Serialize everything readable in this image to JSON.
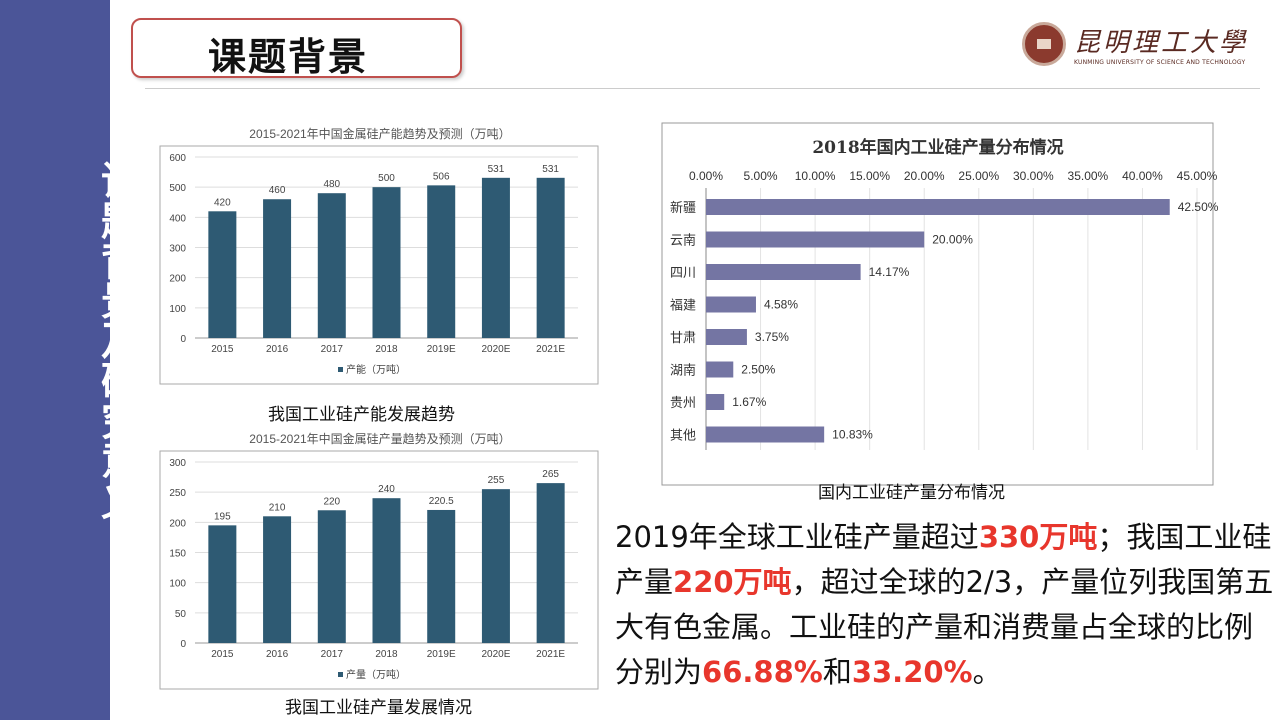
{
  "sidebar": {
    "title": "课题背景及研究意义",
    "color": "#4b5598"
  },
  "header": {
    "title": "课题背景",
    "logo_name": "昆明理工大學",
    "logo_subtitle": "KUNMING UNIVERSITY OF SCIENCE AND TECHNOLOGY"
  },
  "captions": {
    "chart1": "我国工业硅产能发展趋势",
    "chart2": "我国工业硅产量发展情况",
    "chart3": "国内工业硅产量分布情况"
  },
  "paragraph": {
    "p1": "2019年全球工业硅产量超过",
    "h1": "330万吨",
    "p2": "；我国工业硅产量",
    "h2": "220万吨",
    "p3": "，超过全球的2/3，产量位列我国第五大有色金属。工业硅的产量和消费量占全球的比例分别为",
    "h3": "66.88%",
    "p4": "和",
    "h4": "33.20%",
    "p5": "。"
  },
  "chart_data": [
    {
      "type": "bar",
      "title": "2015-2021年中国金属硅产能趋势及预测（万吨）",
      "categories": [
        "2015",
        "2016",
        "2017",
        "2018",
        "2019E",
        "2020E",
        "2021E"
      ],
      "series": [
        {
          "name": "产能（万吨）",
          "values": [
            420,
            460,
            480,
            500,
            506,
            531,
            531
          ]
        }
      ],
      "ylim": [
        0,
        600
      ],
      "yticks": [
        0,
        100,
        200,
        300,
        400,
        500,
        600
      ],
      "grid": true,
      "legend": "bottom",
      "color": "#2e5a73"
    },
    {
      "type": "bar",
      "title": "2015-2021年中国金属硅产量趋势及预测（万吨）",
      "categories": [
        "2015",
        "2016",
        "2017",
        "2018",
        "2019E",
        "2020E",
        "2021E"
      ],
      "series": [
        {
          "name": "产量（万吨）",
          "values": [
            195,
            210,
            220,
            240,
            220.5,
            255,
            265
          ]
        }
      ],
      "ylim": [
        0,
        300
      ],
      "yticks": [
        0,
        50,
        100,
        150,
        200,
        250,
        300
      ],
      "grid": true,
      "legend": "bottom",
      "color": "#2e5a73"
    },
    {
      "type": "bar",
      "orientation": "horizontal",
      "title": "2018年国内工业硅产量分布情况",
      "categories": [
        "新疆",
        "云南",
        "四川",
        "福建",
        "甘肃",
        "湖南",
        "贵州",
        "其他"
      ],
      "values": [
        42.5,
        20.0,
        14.17,
        4.58,
        3.75,
        2.5,
        1.67,
        10.83
      ],
      "labels": [
        "42.50%",
        "20.00%",
        "14.17%",
        "4.58%",
        "3.75%",
        "2.50%",
        "1.67%",
        "10.83%"
      ],
      "xlim": [
        0,
        45
      ],
      "xticks": [
        "0.00%",
        "5.00%",
        "10.00%",
        "15.00%",
        "20.00%",
        "25.00%",
        "30.00%",
        "35.00%",
        "40.00%",
        "45.00%"
      ],
      "grid": true,
      "color": "#7475a3"
    }
  ]
}
